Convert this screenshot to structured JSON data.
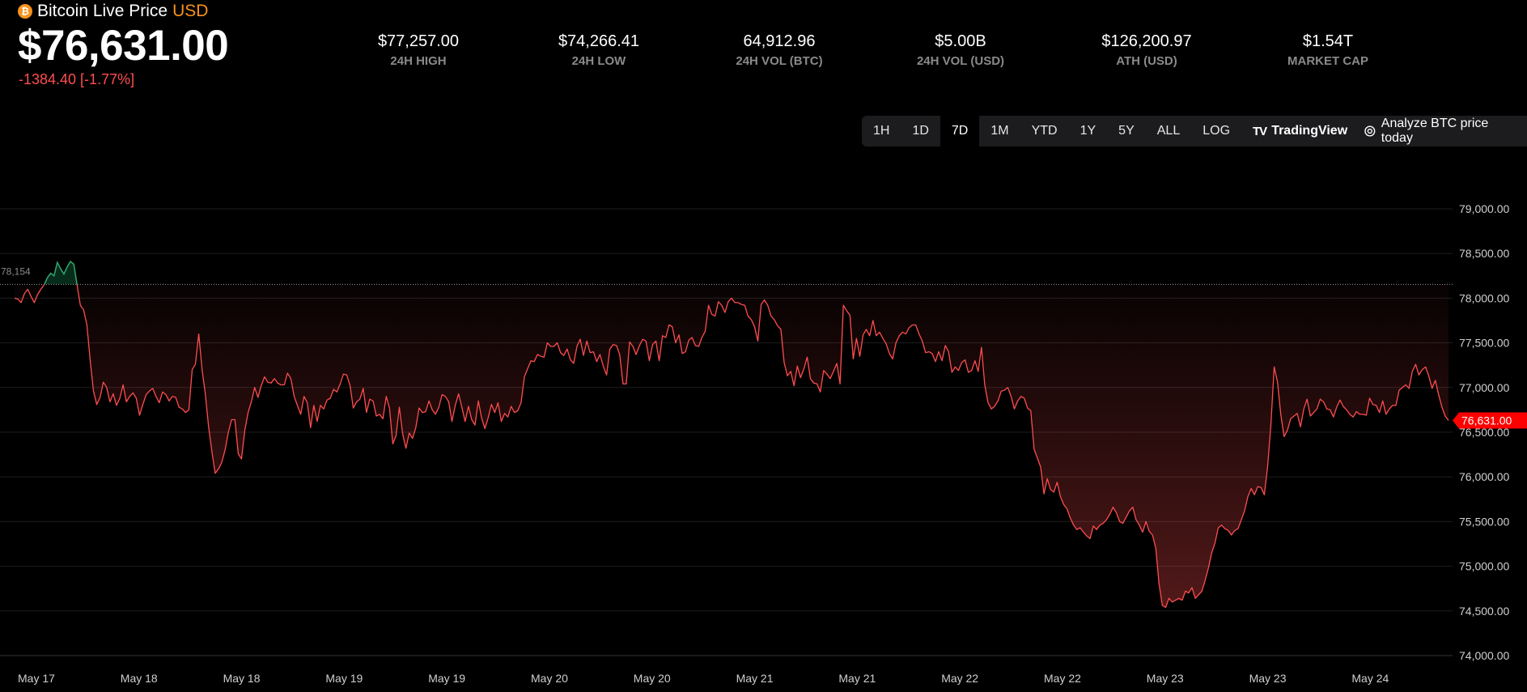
{
  "header": {
    "coin_icon": "bitcoin-icon",
    "coin_symbol": "₿",
    "name": "Bitcoin Live Price",
    "currency": "USD",
    "price": "$76,631.00",
    "change": "-1384.40 [-1.77%]"
  },
  "stats": [
    {
      "value": "$77,257.00",
      "label": "24H HIGH"
    },
    {
      "value": "$74,266.41",
      "label": "24H LOW"
    },
    {
      "value": "64,912.96",
      "label": "24H VOL (BTC)"
    },
    {
      "value": "$5.00B",
      "label": "24H VOL (USD)"
    },
    {
      "value": "$126,200.97",
      "label": "ATH (USD)"
    },
    {
      "value": "$1.54T",
      "label": "MARKET CAP"
    }
  ],
  "toolbar": {
    "ranges": [
      "1H",
      "1D",
      "7D",
      "1M",
      "YTD",
      "1Y",
      "5Y",
      "ALL"
    ],
    "active_range": "7D",
    "log_label": "LOG",
    "tradingview_label": "TradingView",
    "tradingview_logo": "TV",
    "analyze_label": "Analyze BTC price today",
    "analyze_icon": "openai-icon"
  },
  "colors": {
    "down": "#ff4d4f",
    "up": "#1fae6e",
    "accent": "#f7931a",
    "background": "#000000"
  },
  "chart_data": {
    "type": "line",
    "ylim": [
      74000,
      79000
    ],
    "y_ticks": [
      "74,000.00",
      "74,500.00",
      "75,000.00",
      "75,500.00",
      "76,000.00",
      "76,500.00",
      "77,000.00",
      "77,500.00",
      "78,000.00",
      "78,500.00",
      "79,000.00"
    ],
    "x_ticks": [
      "May 17",
      "May 18",
      "May 18",
      "May 19",
      "May 19",
      "May 20",
      "May 20",
      "May 21",
      "May 21",
      "May 22",
      "May 22",
      "May 23",
      "May 23",
      "May 24"
    ],
    "reference_value": 78154,
    "reference_label": "78,154",
    "last_value": 76631,
    "last_label": "76,631.00",
    "grid": true,
    "series": [
      {
        "values": [
          78000,
          77990,
          77950,
          78050,
          78100,
          78020,
          77950,
          78040,
          78100,
          78150,
          78230,
          78280,
          78250,
          78400,
          78330,
          78270,
          78350,
          78410,
          78380,
          78150,
          77920,
          77870,
          77700,
          77300,
          76960,
          76810,
          76890,
          77060,
          77000,
          76840,
          76930,
          76800,
          76880,
          77030,
          76840,
          76900,
          76940,
          76880,
          76690,
          76810,
          76920,
          76960,
          76990,
          76900,
          76830,
          76950,
          76920,
          76850,
          76900,
          76890,
          76780,
          76760,
          76720,
          76750,
          77200,
          77260,
          77600,
          77200,
          76930,
          76560,
          76280,
          76040,
          76090,
          76160,
          76300,
          76500,
          76640,
          76640,
          76260,
          76200,
          76520,
          76720,
          76840,
          77000,
          76890,
          77020,
          77120,
          77060,
          77050,
          77100,
          77050,
          77030,
          77030,
          77160,
          77100,
          76900,
          76800,
          76700,
          76900,
          76830,
          76550,
          76800,
          76620,
          76800,
          76760,
          76860,
          76880,
          76980,
          76950,
          77040,
          77150,
          77140,
          77020,
          76770,
          76840,
          76870,
          76990,
          76720,
          76870,
          76850,
          76680,
          76700,
          76650,
          76900,
          76770,
          76370,
          76460,
          76780,
          76480,
          76320,
          76490,
          76430,
          76550,
          76770,
          76720,
          76730,
          76850,
          76750,
          76700,
          76780,
          76920,
          76900,
          76840,
          76620,
          76800,
          76930,
          76780,
          76620,
          76790,
          76640,
          76580,
          76850,
          76660,
          76540,
          76660,
          76810,
          76720,
          76830,
          76620,
          76710,
          76670,
          76790,
          76720,
          76740,
          76830,
          77120,
          77210,
          77300,
          77290,
          77370,
          77350,
          77340,
          77500,
          77460,
          77460,
          77500,
          77390,
          77360,
          77430,
          77310,
          77270,
          77460,
          77540,
          77360,
          77520,
          77390,
          77400,
          77290,
          77370,
          77240,
          77140,
          77430,
          77480,
          77470,
          77370,
          77040,
          77040,
          77510,
          77460,
          77370,
          77470,
          77540,
          77520,
          77300,
          77480,
          77520,
          77300,
          77580,
          77560,
          77700,
          77680,
          77500,
          77590,
          77380,
          77400,
          77530,
          77560,
          77470,
          77460,
          77560,
          77630,
          77920,
          77820,
          77800,
          77960,
          77920,
          77840,
          77960,
          78000,
          77950,
          77950,
          77930,
          77920,
          77800,
          77760,
          77680,
          77520,
          77930,
          77980,
          77920,
          77800,
          77760,
          77690,
          77650,
          77280,
          77130,
          77180,
          77020,
          77240,
          77110,
          77210,
          77340,
          77100,
          77050,
          77040,
          76950,
          77190,
          77150,
          77100,
          77180,
          77270,
          77040,
          77920,
          77860,
          77810,
          77320,
          77550,
          77350,
          77590,
          77650,
          77580,
          77750,
          77580,
          77620,
          77550,
          77490,
          77380,
          77320,
          77500,
          77580,
          77620,
          77600,
          77670,
          77700,
          77700,
          77600,
          77520,
          77390,
          77400,
          77380,
          77290,
          77400,
          77300,
          77470,
          77400,
          77170,
          77230,
          77190,
          77280,
          77310,
          77170,
          77190,
          77300,
          77180,
          77450,
          77030,
          76830,
          76760,
          76790,
          76850,
          76960,
          76970,
          77000,
          76900,
          76760,
          76850,
          76900,
          76880,
          76770,
          76740,
          76310,
          76210,
          76110,
          75810,
          75980,
          75860,
          75830,
          75940,
          75780,
          75690,
          75640,
          75540,
          75460,
          75410,
          75430,
          75380,
          75340,
          75310,
          75450,
          75410,
          75460,
          75480,
          75520,
          75580,
          75660,
          75600,
          75500,
          75480,
          75550,
          75620,
          75660,
          75520,
          75460,
          75380,
          75500,
          75390,
          75350,
          75200,
          74800,
          74560,
          74540,
          74640,
          74600,
          74620,
          74640,
          74620,
          74720,
          74700,
          74760,
          74640,
          74680,
          74720,
          74840,
          74980,
          75150,
          75260,
          75430,
          75460,
          75420,
          75400,
          75350,
          75400,
          75420,
          75520,
          75620,
          75780,
          75870,
          75800,
          75890,
          75880,
          75800,
          76120,
          76580,
          77230,
          77060,
          76700,
          76450,
          76520,
          76650,
          76680,
          76710,
          76560,
          76760,
          76870,
          76680,
          76720,
          76760,
          76870,
          76840,
          76760,
          76750,
          76670,
          76780,
          76860,
          76790,
          76750,
          76700,
          76670,
          76730,
          76700,
          76700,
          76690,
          76880,
          76810,
          76800,
          76720,
          76850,
          76700,
          76760,
          76800,
          76800,
          76970,
          77000,
          77030,
          76990,
          77180,
          77260,
          77140,
          77200,
          77230,
          77130,
          76990,
          77080,
          76920,
          76780,
          76680,
          76631
        ]
      }
    ]
  }
}
